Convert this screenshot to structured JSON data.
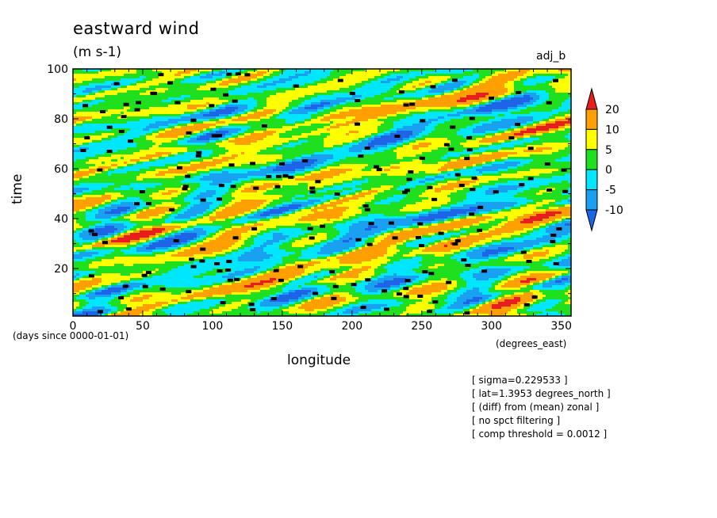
{
  "header": {
    "title": "eastward wind",
    "units": "(m s-1)",
    "tag": "adj_b"
  },
  "axes": {
    "xlabel": "longitude",
    "xunits": "(degrees_east)",
    "ylabel": "time",
    "yunits": "(days since 0000-01-01)"
  },
  "notes": [
    "[ sigma=0.229533 ]",
    "[ lat=1.3953 degrees_north ]",
    "[ (diff) from (mean) zonal ]",
    "[ no spct filtering ]",
    "[ comp threshold = 0.0012 ]"
  ],
  "chart_data": {
    "type": "heatmap",
    "title": "eastward wind",
    "subtitle": "(m s-1)",
    "xlabel": "longitude",
    "ylabel": "time",
    "xlim": [
      0,
      357
    ],
    "ylim": [
      1,
      100
    ],
    "x_ticks": [
      0,
      50,
      100,
      150,
      200,
      250,
      300,
      350
    ],
    "y_ticks": [
      20,
      40,
      60,
      80,
      100
    ],
    "levels": [
      -10,
      -5,
      0,
      5,
      10,
      20
    ],
    "colors": [
      "#1e64e6",
      "#19a0f0",
      "#00e6ff",
      "#1ee01e",
      "#ffff00",
      "#ffa000",
      "#e61e1e"
    ],
    "colorbar_labels": [
      "20",
      "10",
      "5",
      "0",
      "-5",
      "-10"
    ],
    "field_description_values": "contoured eastward wind anomaly, values roughly -15 to 25 m/s with eastward-propagating streaks"
  }
}
